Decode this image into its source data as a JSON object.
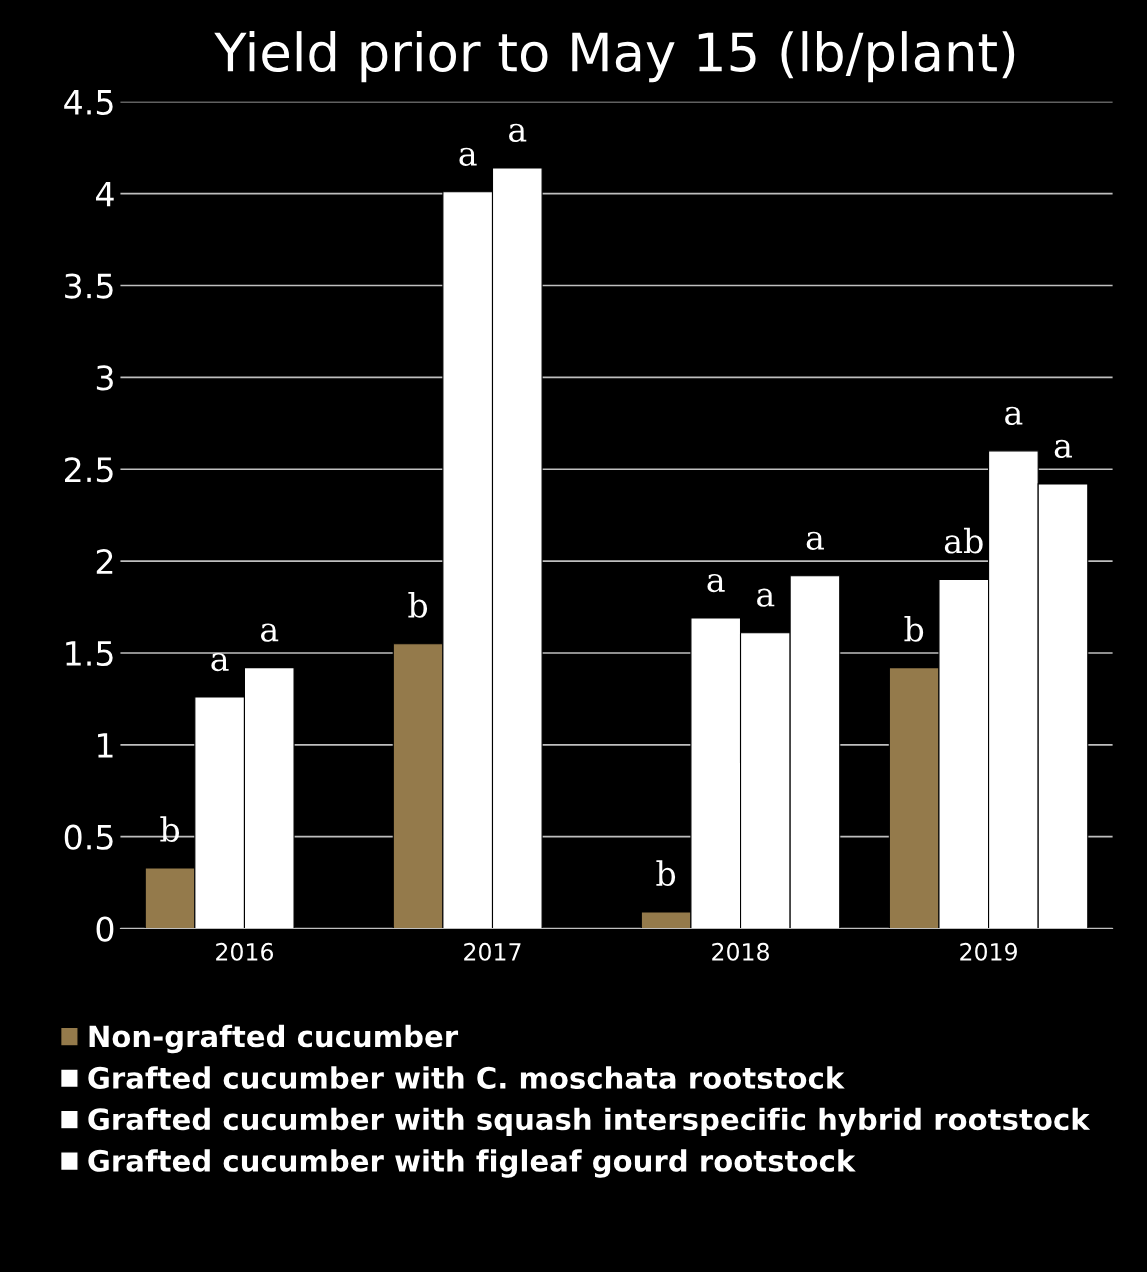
{
  "chart_data": {
    "type": "bar",
    "title": "Yield prior to May 15 (lb/plant)",
    "categories": [
      "2016",
      "2017",
      "2018",
      "2019"
    ],
    "series": [
      {
        "name": "Non-grafted cucumber",
        "color": "#947a4b",
        "values": [
          0.33,
          1.55,
          0.09,
          1.42
        ],
        "value_labels": [
          "b",
          "b",
          "b",
          "b"
        ]
      },
      {
        "name": "Grafted cucumber with C. moschata rootstock",
        "color": "#ffffff",
        "values": [
          1.26,
          4.01,
          1.69,
          1.9
        ],
        "value_labels": [
          "a",
          "a",
          "a",
          "ab"
        ]
      },
      {
        "name": "Grafted cucumber with squash interspecific hybrid rootstock",
        "color": "#ffffff",
        "values": [
          1.42,
          4.14,
          1.61,
          2.6
        ],
        "value_labels": [
          "a",
          "a",
          "a",
          "a"
        ]
      },
      {
        "name": "Grafted cucumber with figleaf gourd rootstock",
        "color": "#ffffff",
        "values": [
          null,
          null,
          1.92,
          2.42
        ],
        "value_labels": [
          null,
          null,
          "a",
          "a"
        ]
      }
    ],
    "ylim": [
      0,
      4.5
    ],
    "yticks": [
      0,
      0.5,
      1,
      1.5,
      2,
      2.5,
      3,
      3.5,
      4,
      4.5
    ],
    "grid": "y",
    "legend": "bottom"
  }
}
